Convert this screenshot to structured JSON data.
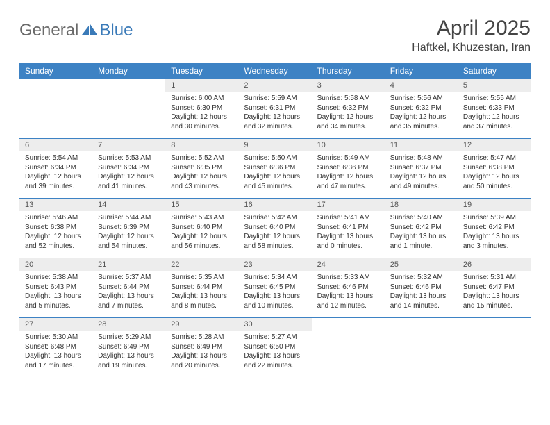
{
  "logo": {
    "general": "General",
    "blue": "Blue",
    "icon_color": "#3a7ab8"
  },
  "title": "April 2025",
  "location": "Haftkel, Khuzestan, Iran",
  "header_bg": "#3d82c4",
  "daynum_bg": "#ededed",
  "day_names": [
    "Sunday",
    "Monday",
    "Tuesday",
    "Wednesday",
    "Thursday",
    "Friday",
    "Saturday"
  ],
  "weeks": [
    [
      null,
      null,
      {
        "n": "1",
        "sr": "6:00 AM",
        "ss": "6:30 PM",
        "dl": "12 hours and 30 minutes."
      },
      {
        "n": "2",
        "sr": "5:59 AM",
        "ss": "6:31 PM",
        "dl": "12 hours and 32 minutes."
      },
      {
        "n": "3",
        "sr": "5:58 AM",
        "ss": "6:32 PM",
        "dl": "12 hours and 34 minutes."
      },
      {
        "n": "4",
        "sr": "5:56 AM",
        "ss": "6:32 PM",
        "dl": "12 hours and 35 minutes."
      },
      {
        "n": "5",
        "sr": "5:55 AM",
        "ss": "6:33 PM",
        "dl": "12 hours and 37 minutes."
      }
    ],
    [
      {
        "n": "6",
        "sr": "5:54 AM",
        "ss": "6:34 PM",
        "dl": "12 hours and 39 minutes."
      },
      {
        "n": "7",
        "sr": "5:53 AM",
        "ss": "6:34 PM",
        "dl": "12 hours and 41 minutes."
      },
      {
        "n": "8",
        "sr": "5:52 AM",
        "ss": "6:35 PM",
        "dl": "12 hours and 43 minutes."
      },
      {
        "n": "9",
        "sr": "5:50 AM",
        "ss": "6:36 PM",
        "dl": "12 hours and 45 minutes."
      },
      {
        "n": "10",
        "sr": "5:49 AM",
        "ss": "6:36 PM",
        "dl": "12 hours and 47 minutes."
      },
      {
        "n": "11",
        "sr": "5:48 AM",
        "ss": "6:37 PM",
        "dl": "12 hours and 49 minutes."
      },
      {
        "n": "12",
        "sr": "5:47 AM",
        "ss": "6:38 PM",
        "dl": "12 hours and 50 minutes."
      }
    ],
    [
      {
        "n": "13",
        "sr": "5:46 AM",
        "ss": "6:38 PM",
        "dl": "12 hours and 52 minutes."
      },
      {
        "n": "14",
        "sr": "5:44 AM",
        "ss": "6:39 PM",
        "dl": "12 hours and 54 minutes."
      },
      {
        "n": "15",
        "sr": "5:43 AM",
        "ss": "6:40 PM",
        "dl": "12 hours and 56 minutes."
      },
      {
        "n": "16",
        "sr": "5:42 AM",
        "ss": "6:40 PM",
        "dl": "12 hours and 58 minutes."
      },
      {
        "n": "17",
        "sr": "5:41 AM",
        "ss": "6:41 PM",
        "dl": "13 hours and 0 minutes."
      },
      {
        "n": "18",
        "sr": "5:40 AM",
        "ss": "6:42 PM",
        "dl": "13 hours and 1 minute."
      },
      {
        "n": "19",
        "sr": "5:39 AM",
        "ss": "6:42 PM",
        "dl": "13 hours and 3 minutes."
      }
    ],
    [
      {
        "n": "20",
        "sr": "5:38 AM",
        "ss": "6:43 PM",
        "dl": "13 hours and 5 minutes."
      },
      {
        "n": "21",
        "sr": "5:37 AM",
        "ss": "6:44 PM",
        "dl": "13 hours and 7 minutes."
      },
      {
        "n": "22",
        "sr": "5:35 AM",
        "ss": "6:44 PM",
        "dl": "13 hours and 8 minutes."
      },
      {
        "n": "23",
        "sr": "5:34 AM",
        "ss": "6:45 PM",
        "dl": "13 hours and 10 minutes."
      },
      {
        "n": "24",
        "sr": "5:33 AM",
        "ss": "6:46 PM",
        "dl": "13 hours and 12 minutes."
      },
      {
        "n": "25",
        "sr": "5:32 AM",
        "ss": "6:46 PM",
        "dl": "13 hours and 14 minutes."
      },
      {
        "n": "26",
        "sr": "5:31 AM",
        "ss": "6:47 PM",
        "dl": "13 hours and 15 minutes."
      }
    ],
    [
      {
        "n": "27",
        "sr": "5:30 AM",
        "ss": "6:48 PM",
        "dl": "13 hours and 17 minutes."
      },
      {
        "n": "28",
        "sr": "5:29 AM",
        "ss": "6:49 PM",
        "dl": "13 hours and 19 minutes."
      },
      {
        "n": "29",
        "sr": "5:28 AM",
        "ss": "6:49 PM",
        "dl": "13 hours and 20 minutes."
      },
      {
        "n": "30",
        "sr": "5:27 AM",
        "ss": "6:50 PM",
        "dl": "13 hours and 22 minutes."
      },
      null,
      null,
      null
    ]
  ],
  "labels": {
    "sunrise": "Sunrise: ",
    "sunset": "Sunset: ",
    "daylight": "Daylight: "
  }
}
